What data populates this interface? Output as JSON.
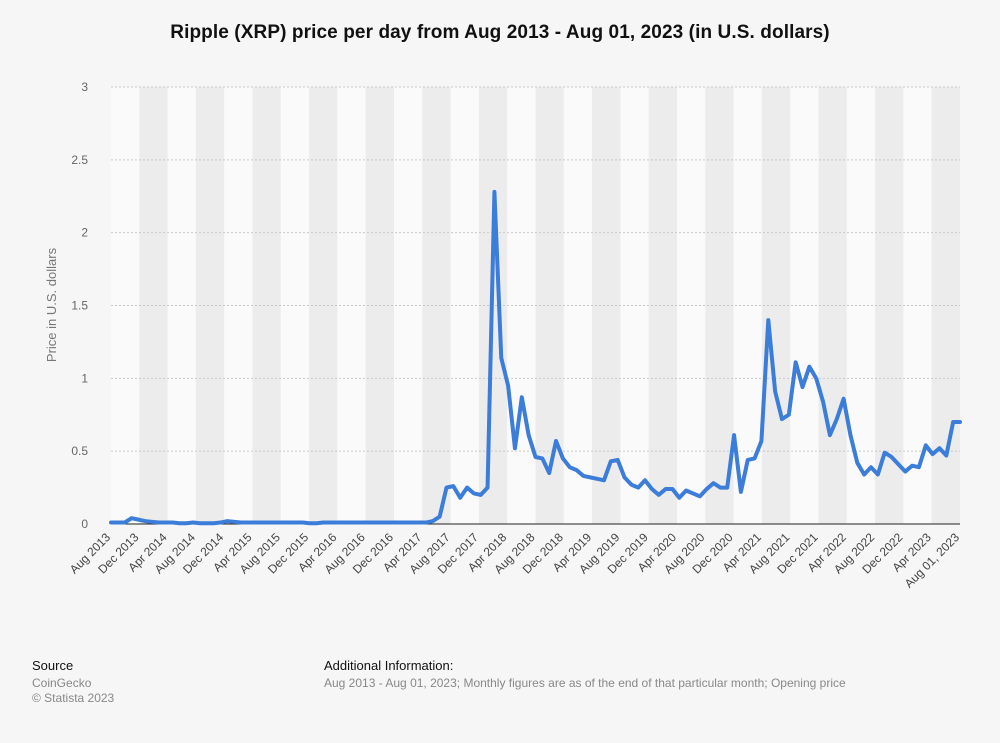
{
  "chart_data": {
    "type": "line",
    "title": "Ripple (XRP) price per day from Aug 2013 - Aug 01, 2023 (in U.S. dollars)",
    "ylabel": "Price in U.S. dollars",
    "xlabel": "",
    "ylim": [
      0,
      3
    ],
    "yticks": [
      "0",
      "0.5",
      "1",
      "1.5",
      "2",
      "2.5",
      "3"
    ],
    "x_tick_labels": [
      "Aug 2013",
      "Dec 2013",
      "Apr 2014",
      "Aug 2014",
      "Dec 2014",
      "Apr 2015",
      "Aug 2015",
      "Dec 2015",
      "Apr 2016",
      "Aug 2016",
      "Dec 2016",
      "Apr 2017",
      "Aug 2017",
      "Dec 2017",
      "Apr 2018",
      "Aug 2018",
      "Dec 2018",
      "Apr 2019",
      "Aug 2019",
      "Dec 2019",
      "Apr 2020",
      "Aug 2020",
      "Dec 2020",
      "Apr 2021",
      "Aug 2021",
      "Dec 2021",
      "Apr 2022",
      "Aug 2022",
      "Dec 2022",
      "Apr 2023",
      "Aug 01, 2023"
    ],
    "grid": true,
    "legend": "none",
    "series_color": "#3b7dd8",
    "series": [
      {
        "values": [
          0.01,
          0.01,
          0.01,
          0.04,
          0.03,
          0.02,
          0.015,
          0.01,
          0.01,
          0.01,
          0.005,
          0.005,
          0.01,
          0.005,
          0.005,
          0.005,
          0.01,
          0.02,
          0.015,
          0.01,
          0.01,
          0.01,
          0.01,
          0.01,
          0.01,
          0.01,
          0.01,
          0.01,
          0.01,
          0.005,
          0.005,
          0.01,
          0.01,
          0.01,
          0.01,
          0.01,
          0.01,
          0.01,
          0.01,
          0.01,
          0.01,
          0.01,
          0.01,
          0.01,
          0.01,
          0.01,
          0.01,
          0.02,
          0.05,
          0.25,
          0.26,
          0.18,
          0.25,
          0.21,
          0.2,
          0.25,
          2.28,
          1.14,
          0.95,
          0.52,
          0.87,
          0.61,
          0.46,
          0.45,
          0.35,
          0.57,
          0.45,
          0.39,
          0.37,
          0.33,
          0.32,
          0.31,
          0.3,
          0.43,
          0.44,
          0.32,
          0.27,
          0.25,
          0.3,
          0.24,
          0.2,
          0.24,
          0.24,
          0.18,
          0.23,
          0.21,
          0.19,
          0.24,
          0.28,
          0.25,
          0.25,
          0.61,
          0.22,
          0.44,
          0.45,
          0.57,
          1.4,
          0.91,
          0.72,
          0.75,
          1.11,
          0.94,
          1.08,
          1.0,
          0.84,
          0.61,
          0.72,
          0.86,
          0.61,
          0.42,
          0.34,
          0.39,
          0.34,
          0.49,
          0.46,
          0.41,
          0.36,
          0.4,
          0.39,
          0.54,
          0.48,
          0.52,
          0.47,
          0.7,
          0.7
        ]
      }
    ]
  },
  "footer": {
    "source_heading": "Source",
    "source_name": "CoinGecko",
    "copyright": "© Statista 2023",
    "additional_heading": "Additional Information:",
    "additional_text": "Aug 2013 - Aug 01, 2023; Monthly figures are as of the end of that particular month; Opening price"
  }
}
